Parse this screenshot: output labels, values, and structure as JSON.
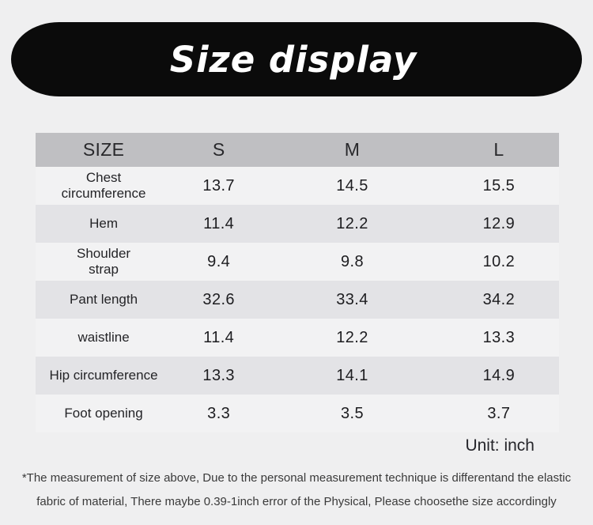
{
  "header": {
    "title": "Size display"
  },
  "table": {
    "columns": [
      "SIZE",
      "S",
      "M",
      "L"
    ],
    "rows": [
      {
        "label": "Chest\ncircumference",
        "values": [
          "13.7",
          "14.5",
          "15.5"
        ]
      },
      {
        "label": "Hem",
        "values": [
          "11.4",
          "12.2",
          "12.9"
        ]
      },
      {
        "label": "Shoulder\nstrap",
        "values": [
          "9.4",
          "9.8",
          "10.2"
        ]
      },
      {
        "label": "Pant length",
        "values": [
          "32.6",
          "33.4",
          "34.2"
        ]
      },
      {
        "label": "waistline",
        "values": [
          "11.4",
          "12.2",
          "13.3"
        ]
      },
      {
        "label": "Hip circumference",
        "values": [
          "13.3",
          "14.1",
          "14.9"
        ]
      },
      {
        "label": "Foot opening",
        "values": [
          "3.3",
          "3.5",
          "3.7"
        ]
      }
    ]
  },
  "footer": {
    "unit_label": "Unit: inch",
    "note_line1": "*The measurement of size above, Due to the personal measurement technique is differentand the elastic",
    "note_line2": "fabric of material, There maybe 0.39-1inch error of the Physical, Please choosethe size accordingly"
  },
  "colors": {
    "page_background": "#efeff0",
    "banner_background": "#0b0b0b",
    "banner_text": "#ffffff",
    "table_header_background": "#bfbfc2",
    "row_alternate_background": "#e3e3e6",
    "row_light_background": "#f2f2f3",
    "text": "#242427"
  }
}
